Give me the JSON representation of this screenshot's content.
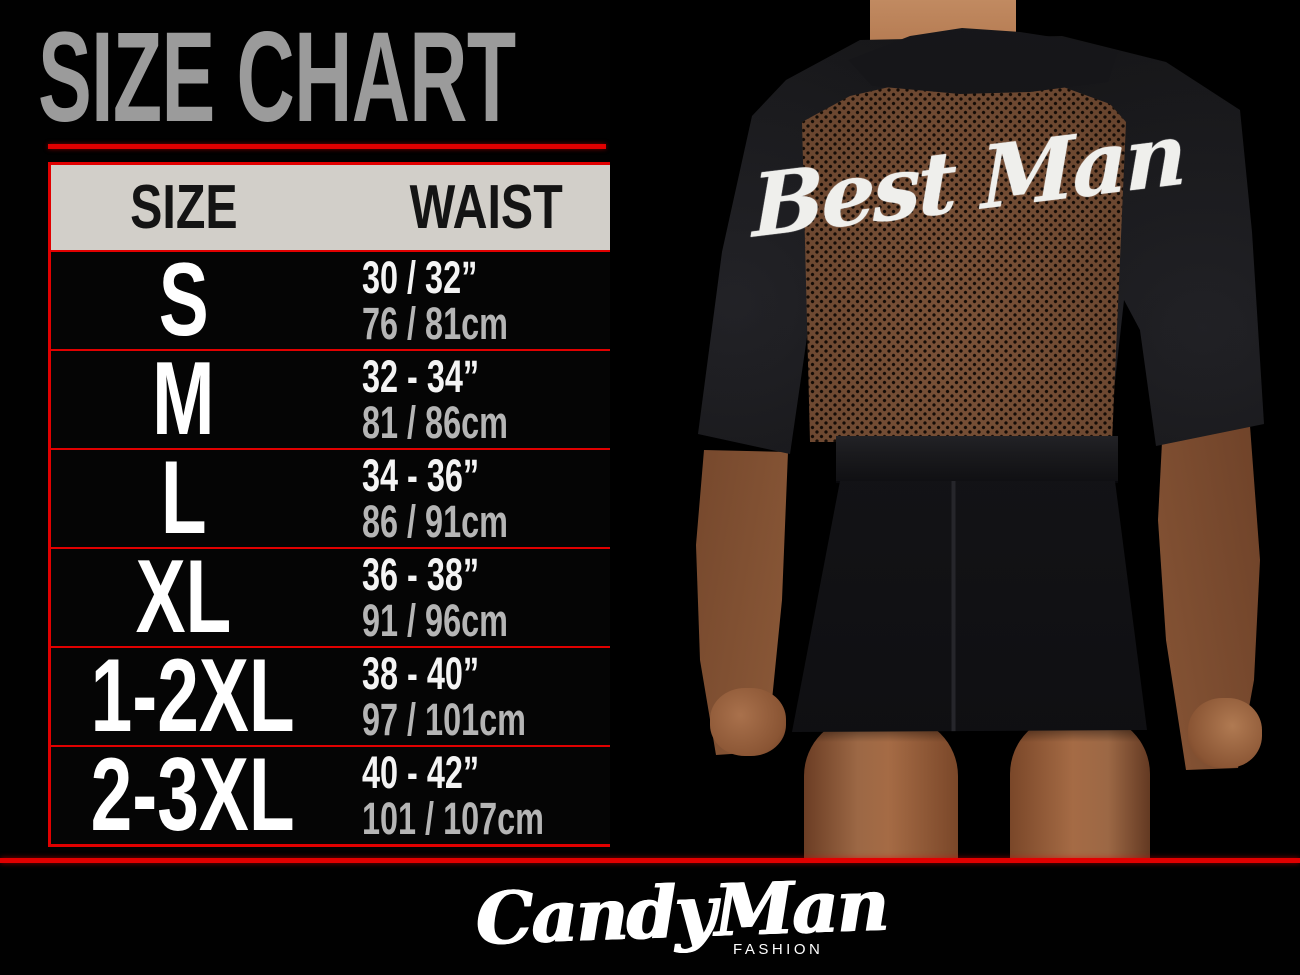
{
  "title": "SIZE CHART",
  "table": {
    "headers": [
      "SIZE",
      "WAIST"
    ],
    "rows": [
      {
        "size": "S",
        "waist_in": "30 / 32”",
        "waist_cm": "76 / 81cm"
      },
      {
        "size": "M",
        "waist_in": "32 - 34”",
        "waist_cm": "81 / 86cm"
      },
      {
        "size": "L",
        "waist_in": "34 - 36”",
        "waist_cm": "86 / 91cm"
      },
      {
        "size": "XL",
        "waist_in": "36 - 38”",
        "waist_cm": "91 / 96cm"
      },
      {
        "size": "1-2XL",
        "waist_in": "38 - 40”",
        "waist_cm": "97 / 101cm"
      },
      {
        "size": "2-3XL",
        "waist_in": "40 - 42”",
        "waist_cm": "101 / 107cm"
      }
    ]
  },
  "photo": {
    "garment_text": "Best Man",
    "description": "rear view of man wearing black robe with sheer mesh back panel"
  },
  "brand": {
    "name": "CandyMan",
    "subtitle": "FASHION"
  },
  "colors": {
    "accent_red": "#e10000",
    "title_gray": "#9b9b9b",
    "header_bg": "#d2cfc9",
    "header_text": "#141414",
    "row_bg": "#050505",
    "waist_inches_text": "#f4f4f4",
    "waist_cm_text": "#b5b5b5",
    "mesh_brown": "#6a462f",
    "skin_tone": "#a9714c"
  },
  "chart_data": {
    "type": "table",
    "title": "SIZE CHART",
    "columns": [
      "SIZE",
      "WAIST (inches)",
      "WAIST (cm)"
    ],
    "rows": [
      [
        "S",
        "30 / 32”",
        "76 / 81cm"
      ],
      [
        "M",
        "32 - 34”",
        "81 / 86cm"
      ],
      [
        "L",
        "34 - 36”",
        "86 / 91cm"
      ],
      [
        "XL",
        "36 - 38”",
        "91 / 96cm"
      ],
      [
        "1-2XL",
        "38 - 40”",
        "97 / 101cm"
      ],
      [
        "2-3XL",
        "40 - 42”",
        "101 / 107cm"
      ]
    ]
  }
}
